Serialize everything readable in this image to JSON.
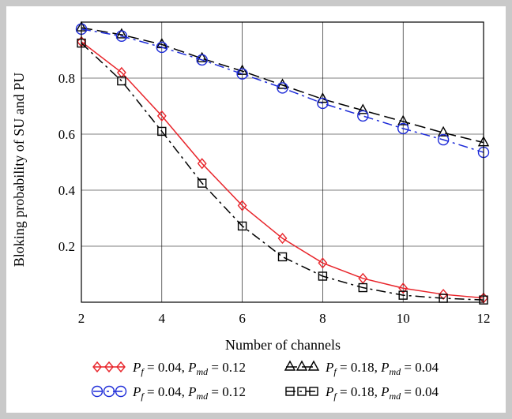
{
  "chart_data": {
    "type": "line",
    "xlabel": "Number of channels",
    "ylabel": "Bloking probability of SU and PU",
    "xlim": [
      2,
      12
    ],
    "ylim": [
      0,
      1
    ],
    "x_ticks": [
      "2",
      "4",
      "6",
      "8",
      "10",
      "12"
    ],
    "y_ticks": [
      "0.2",
      "0.4",
      "0.6",
      "0.8"
    ],
    "x_tick_values": [
      2,
      4,
      6,
      8,
      10,
      12
    ],
    "y_tick_values": [
      0.2,
      0.4,
      0.6,
      0.8
    ],
    "grid": true,
    "legend_position": "bottom",
    "x": [
      2,
      3,
      4,
      5,
      6,
      7,
      8,
      9,
      10,
      11,
      12
    ],
    "series": [
      {
        "name": "P_f = 0.04, P_md = 0.12",
        "name_parts": {
          "p1": "P",
          "s1": "f",
          "v1": " = 0.04, ",
          "p2": "P",
          "s2": "md",
          "v2": " = 0.12"
        },
        "marker": "diamond",
        "color": "#e8242a",
        "dash": "solid",
        "values": [
          0.93,
          0.82,
          0.665,
          0.495,
          0.345,
          0.228,
          0.14,
          0.085,
          0.05,
          0.028,
          0.015
        ]
      },
      {
        "name": "P_f = 0.18, P_md = 0.04",
        "name_parts": {
          "p1": "P",
          "s1": "f",
          "v1": " = 0.18, ",
          "p2": "P",
          "s2": "md",
          "v2": " = 0.04"
        },
        "marker": "triangle",
        "color": "#000000",
        "dash": "dashed",
        "values": [
          0.98,
          0.955,
          0.92,
          0.87,
          0.825,
          0.775,
          0.725,
          0.685,
          0.645,
          0.605,
          0.57
        ]
      },
      {
        "name": "P_f = 0.04, P_md = 0.12",
        "name_parts": {
          "p1": "P",
          "s1": "f",
          "v1": " = 0.04, ",
          "p2": "P",
          "s2": "md",
          "v2": " = 0.12"
        },
        "marker": "circle",
        "color": "#1d2bd8",
        "dash": "dashdot",
        "values": [
          0.975,
          0.95,
          0.91,
          0.865,
          0.815,
          0.765,
          0.71,
          0.665,
          0.62,
          0.58,
          0.535
        ]
      },
      {
        "name": "P_f = 0.18, P_md = 0.04",
        "name_parts": {
          "p1": "P",
          "s1": "f",
          "v1": " = 0.18, ",
          "p2": "P",
          "s2": "md",
          "v2": " = 0.04"
        },
        "marker": "square",
        "color": "#000000",
        "dash": "dashdot",
        "values": [
          0.925,
          0.79,
          0.61,
          0.425,
          0.272,
          0.162,
          0.093,
          0.052,
          0.025,
          0.014,
          0.008
        ]
      }
    ]
  }
}
